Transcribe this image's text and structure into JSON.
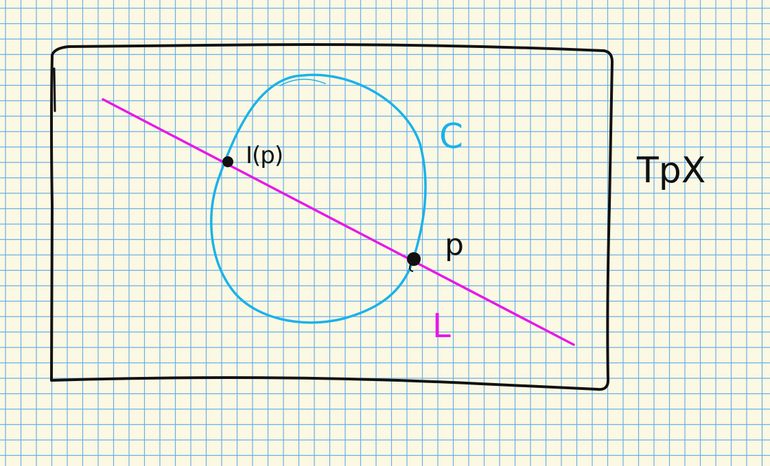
{
  "labels": {
    "curve": "C",
    "point_p": "p",
    "point_ip": "I(p)",
    "line": "L",
    "tangent_space": "TpX"
  },
  "colors": {
    "paper": "#fbf8e3",
    "grid": "#5aa8e8",
    "frame": "#111111",
    "curve": "#1ab2ea",
    "line": "#e619e6",
    "points": "#111111",
    "ink": "#111111"
  }
}
